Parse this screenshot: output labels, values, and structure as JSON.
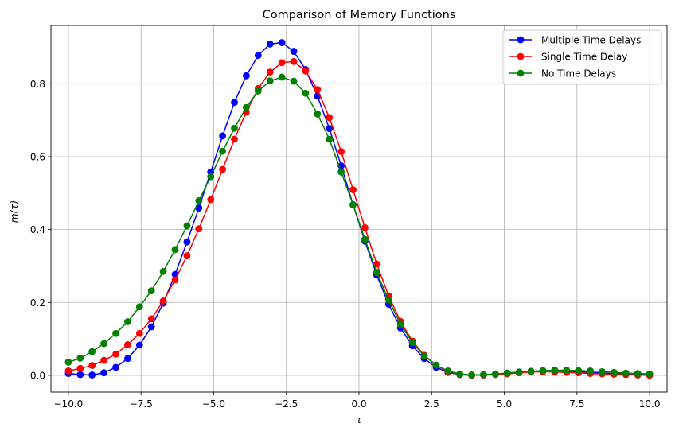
{
  "chart_data": {
    "type": "line",
    "title": "Comparison of Memory Functions",
    "xlabel": "τ",
    "ylabel": "m(τ)",
    "xlim": [
      -10.6,
      10.6
    ],
    "ylim": [
      -0.046,
      0.96
    ],
    "xticks": [
      -10.0,
      -7.5,
      -5.0,
      -2.5,
      0.0,
      2.5,
      5.0,
      7.5,
      10.0
    ],
    "xtick_labels": [
      "−10.0",
      "−7.5",
      "−5.0",
      "−2.5",
      "0.0",
      "2.5",
      "5.0",
      "7.5",
      "10.0"
    ],
    "yticks": [
      0.0,
      0.2,
      0.4,
      0.6,
      0.8
    ],
    "ytick_labels": [
      "0.0",
      "0.2",
      "0.4",
      "0.6",
      "0.8"
    ],
    "grid": true,
    "legend_position": "top-right",
    "x": [
      -10.0,
      -9.592,
      -9.184,
      -8.776,
      -8.367,
      -7.959,
      -7.551,
      -7.143,
      -6.735,
      -6.327,
      -5.918,
      -5.51,
      -5.102,
      -4.694,
      -4.286,
      -3.878,
      -3.469,
      -3.061,
      -2.653,
      -2.245,
      -1.837,
      -1.429,
      -1.02,
      -0.612,
      -0.204,
      0.204,
      0.612,
      1.02,
      1.429,
      1.837,
      2.245,
      2.653,
      3.061,
      3.469,
      3.878,
      4.286,
      4.694,
      5.102,
      5.51,
      5.918,
      6.327,
      6.735,
      7.143,
      7.551,
      7.959,
      8.367,
      8.776,
      9.184,
      9.592,
      10.0
    ],
    "series": [
      {
        "name": "Multiple Time Delays",
        "color": "#0000ff",
        "values": [
          0.005,
          0.002,
          0.001,
          0.007,
          0.022,
          0.046,
          0.083,
          0.133,
          0.198,
          0.277,
          0.366,
          0.459,
          0.558,
          0.657,
          0.749,
          0.822,
          0.878,
          0.909,
          0.913,
          0.889,
          0.839,
          0.766,
          0.677,
          0.575,
          0.468,
          0.368,
          0.275,
          0.195,
          0.13,
          0.081,
          0.046,
          0.022,
          0.008,
          0.002,
          0.0,
          0.001,
          0.003,
          0.006,
          0.009,
          0.011,
          0.012,
          0.012,
          0.011,
          0.01,
          0.008,
          0.006,
          0.005,
          0.004,
          0.003,
          0.002
        ]
      },
      {
        "name": "Single Time Delay",
        "color": "#ff0000",
        "values": [
          0.012,
          0.019,
          0.027,
          0.041,
          0.058,
          0.084,
          0.115,
          0.155,
          0.204,
          0.262,
          0.328,
          0.402,
          0.482,
          0.565,
          0.648,
          0.722,
          0.787,
          0.832,
          0.858,
          0.861,
          0.835,
          0.784,
          0.707,
          0.614,
          0.509,
          0.405,
          0.305,
          0.218,
          0.148,
          0.094,
          0.055,
          0.028,
          0.01,
          0.002,
          0.0,
          0.001,
          0.002,
          0.004,
          0.007,
          0.009,
          0.01,
          0.009,
          0.008,
          0.007,
          0.005,
          0.004,
          0.003,
          0.002,
          0.001,
          0.0
        ]
      },
      {
        "name": "No Time Delays",
        "color": "#008000",
        "values": [
          0.036,
          0.047,
          0.065,
          0.087,
          0.115,
          0.147,
          0.188,
          0.232,
          0.285,
          0.345,
          0.41,
          0.479,
          0.545,
          0.615,
          0.678,
          0.735,
          0.78,
          0.808,
          0.818,
          0.807,
          0.774,
          0.717,
          0.648,
          0.558,
          0.468,
          0.373,
          0.282,
          0.207,
          0.14,
          0.09,
          0.053,
          0.028,
          0.012,
          0.004,
          0.001,
          0.002,
          0.004,
          0.006,
          0.009,
          0.011,
          0.013,
          0.014,
          0.014,
          0.013,
          0.012,
          0.01,
          0.008,
          0.006,
          0.005,
          0.004
        ]
      }
    ]
  }
}
